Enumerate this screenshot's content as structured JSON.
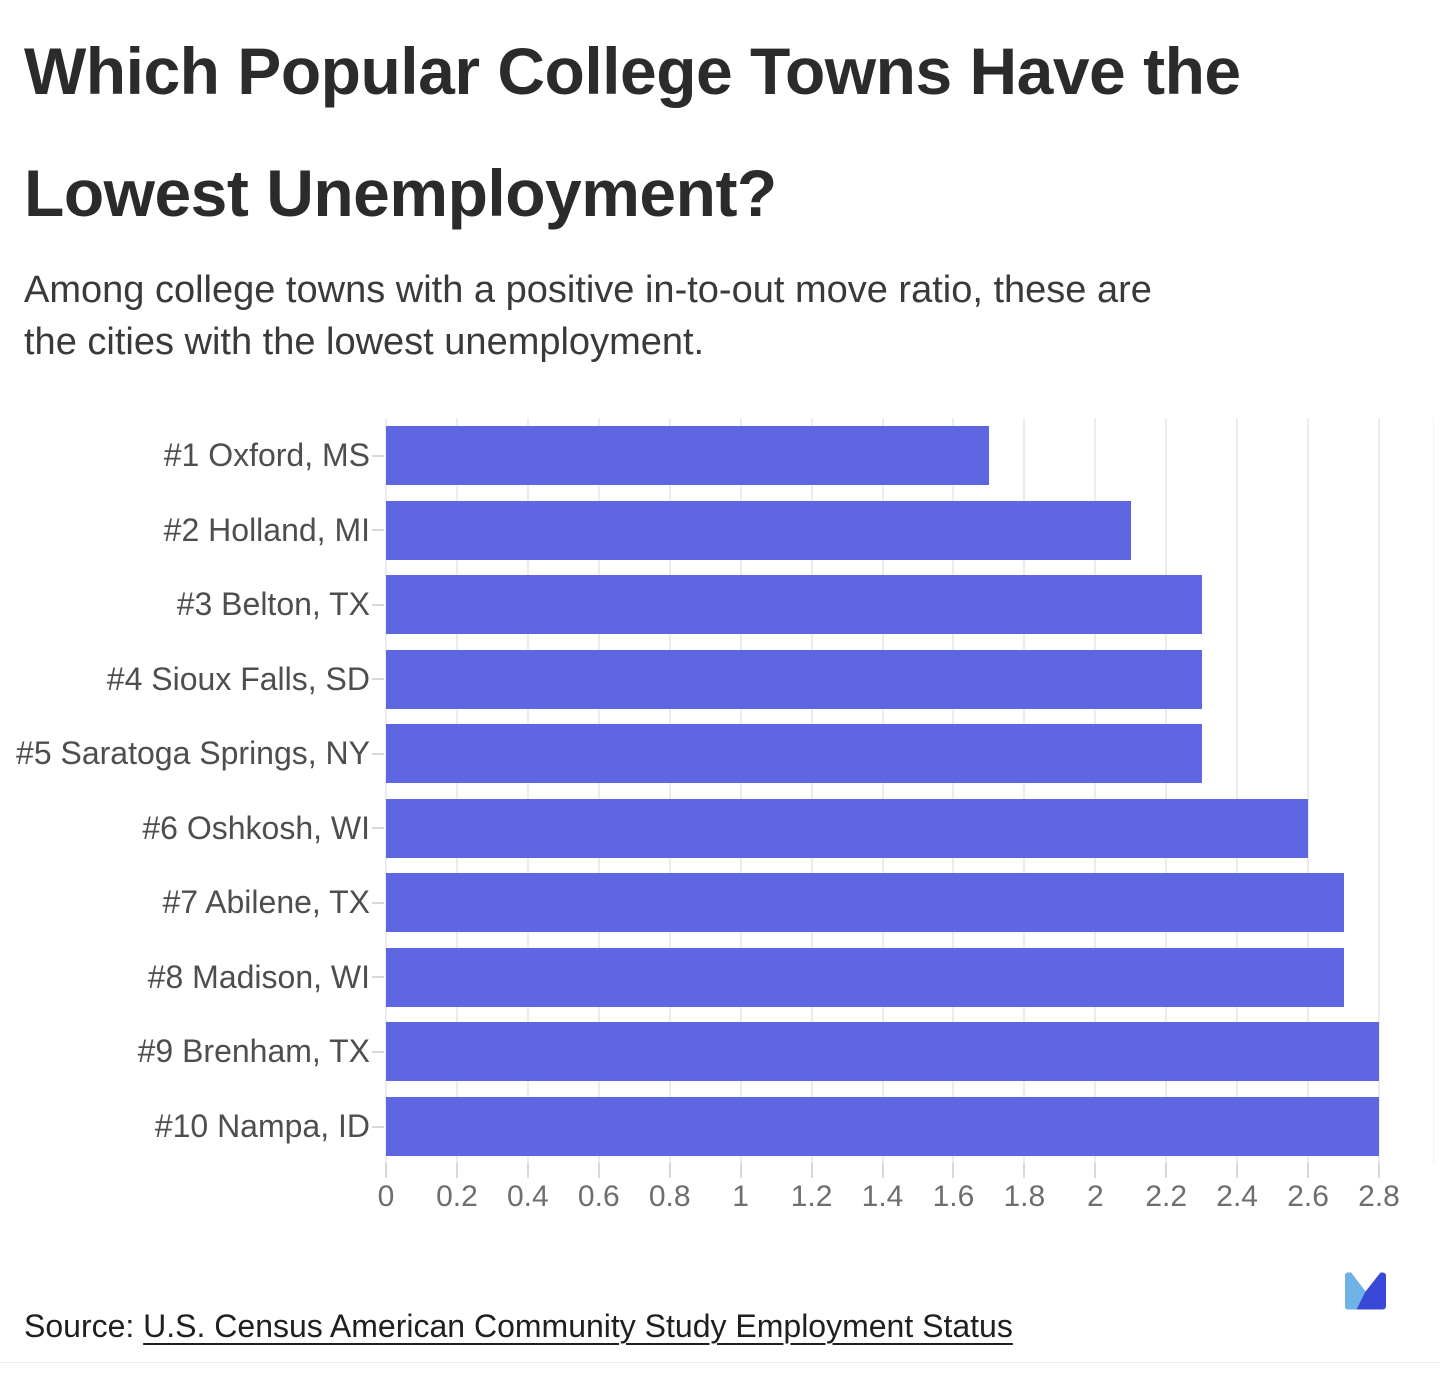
{
  "header": {
    "title_lines": [
      "Which Popular College Towns Have the",
      "Lowest Unemployment?"
    ],
    "subtitle_lines": [
      "Among college towns with a positive in-to-out move ratio, these are",
      "the cities with the lowest unemployment."
    ]
  },
  "chart_data": {
    "type": "bar",
    "orientation": "horizontal",
    "title": "Which Popular College Towns Have the Lowest Unemployment?",
    "subtitle": "Among college towns with a positive in-to-out move ratio, these are the cities with the lowest unemployment.",
    "categories": [
      "#1 Oxford, MS",
      "#2 Holland, MI",
      "#3 Belton, TX",
      "#4 Sioux Falls, SD",
      "#5 Saratoga Springs, NY",
      "#6 Oshkosh, WI",
      "#7 Abilene, TX",
      "#8 Madison, WI",
      "#9 Brenham, TX",
      "#10 Nampa, ID"
    ],
    "values": [
      1.7,
      2.1,
      2.3,
      2.3,
      2.3,
      2.6,
      2.7,
      2.7,
      2.8,
      2.8
    ],
    "xlabel": "",
    "ylabel": "",
    "xlim": [
      0,
      2.8
    ],
    "x_ticks": [
      "0",
      "0.2",
      "0.4",
      "0.6",
      "0.8",
      "1",
      "1.2",
      "1.4",
      "1.6",
      "1.8",
      "2",
      "2.2",
      "2.4",
      "2.6",
      "2.8"
    ],
    "grid": true,
    "legend": "none",
    "bar_color": "#5e66e2",
    "gridline_color": "#ececec",
    "tick_color": "#d9d9d9"
  },
  "footer": {
    "source_prefix": "Source: ",
    "source_link": "U.S. Census American Community Study Employment Status"
  },
  "logo": {
    "light_color": "#6fb2e5",
    "dark_color": "#3a48d8"
  }
}
